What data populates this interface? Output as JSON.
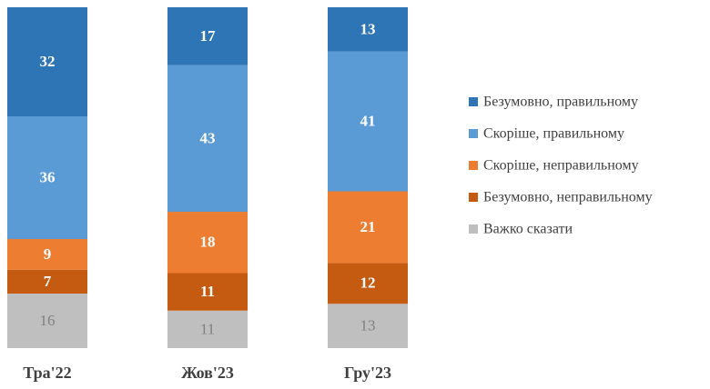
{
  "chart_data": {
    "type": "stacked_bar",
    "categories": [
      "Тра'22",
      "Жов'23",
      "Гру'23"
    ],
    "series": [
      {
        "name": "Безумовно, правильному",
        "color": "#2e75b6",
        "label_color": "#ffffff",
        "values": [
          32,
          17,
          13
        ]
      },
      {
        "name": "Скоріше, правильному",
        "color": "#5b9bd5",
        "label_color": "#ffffff",
        "values": [
          36,
          43,
          41
        ]
      },
      {
        "name": "Скоріше, неправильному",
        "color": "#ed7d31",
        "label_color": "#ffffff",
        "values": [
          9,
          18,
          21
        ]
      },
      {
        "name": "Безумовно, неправильному",
        "color": "#c55a11",
        "label_color": "#ffffff",
        "values": [
          7,
          11,
          12
        ]
      },
      {
        "name": "Важко сказати",
        "color": "#bfbfbf",
        "label_color": "#808080",
        "values": [
          16,
          11,
          13
        ]
      }
    ],
    "legend": "right"
  }
}
